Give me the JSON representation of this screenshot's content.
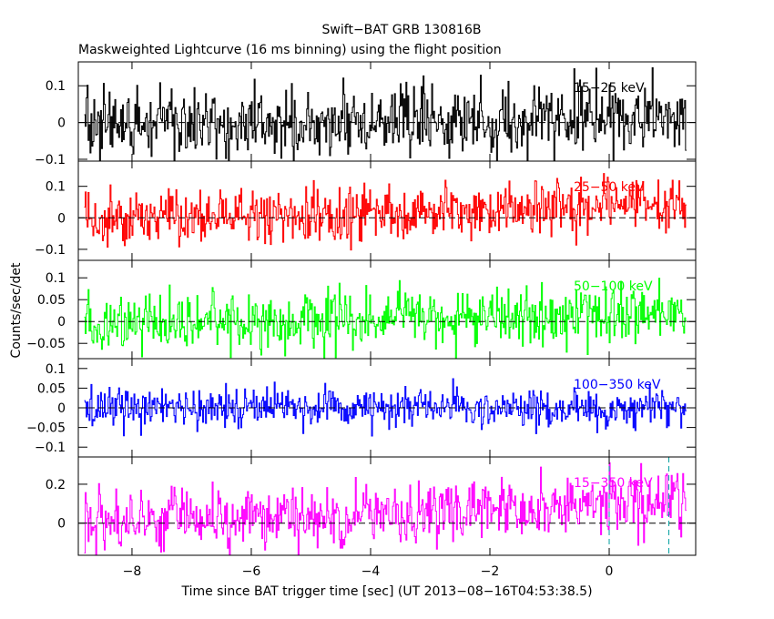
{
  "chart_data": {
    "type": "line",
    "title": "Swift−BAT GRB 130816B",
    "subtitle": "Maskweighted Lightcurve (16 ms binning) using the flight position",
    "xlabel": "Time since BAT trigger time [sec] (UT 2013−08−16T04:53:38.5)",
    "ylabel": "Counts/sec/det",
    "xlim": [
      -8.9,
      1.45
    ],
    "x_ticks": [
      -8,
      -6,
      -4,
      -2,
      0
    ],
    "x_tick_labels": [
      "−8",
      "−6",
      "−4",
      "−2",
      "0"
    ],
    "x_range_data": [
      -8.8,
      1.3
    ],
    "bin_width_s": 0.016,
    "trigger_markers_x": [
      0.0,
      1.0
    ],
    "panels": [
      {
        "band": "15−25 keV",
        "color": "#000000",
        "ylim": [
          -0.105,
          0.165
        ],
        "yticks": [
          -0.1,
          0,
          0.1
        ],
        "ytick_labels": [
          "−0.1",
          "0",
          "0.1"
        ],
        "noise": 0.045,
        "trend": [
          0.0,
          0.0,
          0.02
        ]
      },
      {
        "band": "25−50 keV",
        "color": "#ff0000",
        "ylim": [
          -0.135,
          0.18
        ],
        "yticks": [
          -0.1,
          0,
          0.1
        ],
        "ytick_labels": [
          "−0.1",
          "0",
          "0.1"
        ],
        "noise": 0.045,
        "trend": [
          0.0,
          0.01,
          0.045
        ]
      },
      {
        "band": "50−100 keV",
        "color": "#00ff00",
        "ylim": [
          -0.085,
          0.14
        ],
        "yticks": [
          -0.05,
          0,
          0.05,
          0.1
        ],
        "ytick_labels": [
          "−0.05",
          "0",
          "0.05",
          "0.1"
        ],
        "noise": 0.035,
        "trend": [
          0.0,
          0.005,
          0.02
        ]
      },
      {
        "band": "100−350 keV",
        "color": "#0000ff",
        "ylim": [
          -0.125,
          0.125
        ],
        "yticks": [
          -0.1,
          -0.05,
          0,
          0.05,
          0.1
        ],
        "ytick_labels": [
          "−0.1",
          "−0.05",
          "0",
          "0.05",
          "0.1"
        ],
        "noise": 0.025,
        "trend": [
          0.0,
          0.0,
          0.0
        ]
      },
      {
        "band": "15−350 keV",
        "color": "#ff00ff",
        "ylim": [
          -0.165,
          0.34
        ],
        "yticks": [
          0,
          0.2
        ],
        "ytick_labels": [
          "0",
          "0.2"
        ],
        "noise": 0.075,
        "trend": [
          0.0,
          0.04,
          0.12
        ]
      }
    ]
  }
}
